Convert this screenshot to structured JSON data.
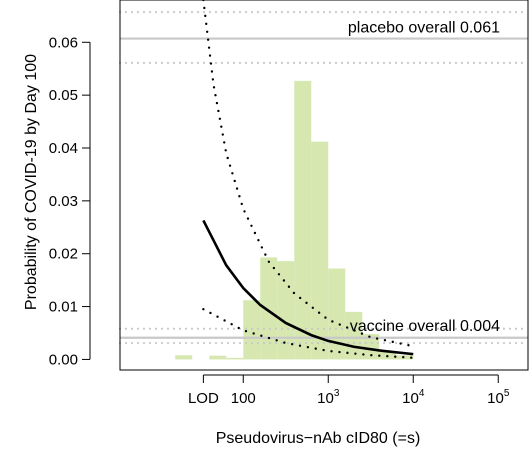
{
  "chart_data": {
    "type": "line",
    "title": "",
    "xlabel": "Pseudovirus−nAb cID80 (=s)",
    "ylabel": "Probability of COVID-19 by Day 100",
    "xscale": "log10",
    "xlim_log10": [
      0.55,
      5.35
    ],
    "ylim": [
      -0.002,
      0.068
    ],
    "grid": false,
    "x_tick_labels": [
      {
        "value_log10": 1.531,
        "base": "LOD",
        "exp": ""
      },
      {
        "value_log10": 2.0,
        "base": "100",
        "exp": ""
      },
      {
        "value_log10": 3.0,
        "base": "10",
        "exp": "3"
      },
      {
        "value_log10": 4.0,
        "base": "10",
        "exp": "4"
      },
      {
        "value_log10": 5.0,
        "base": "10",
        "exp": "5"
      }
    ],
    "y_ticks": [
      0.0,
      0.01,
      0.02,
      0.03,
      0.04,
      0.05,
      0.06
    ],
    "y_tick_labels": [
      "0.00",
      "0.01",
      "0.02",
      "0.03",
      "0.04",
      "0.05",
      "0.06"
    ],
    "reference_lines": [
      {
        "label": "placebo overall 0.061",
        "value": 0.0607,
        "lower": 0.0561,
        "upper": 0.0657,
        "color": "#c8c8c8"
      },
      {
        "label": "vaccine overall 0.004",
        "value": 0.0041,
        "lower": 0.0031,
        "upper": 0.0058,
        "color": "#c8c8c8"
      }
    ],
    "curve": {
      "x_log10": [
        1.531,
        1.8,
        2.0,
        2.2,
        2.5,
        2.8,
        3.0,
        3.3,
        3.6,
        4.0
      ],
      "y": [
        0.0263,
        0.0178,
        0.0135,
        0.0103,
        0.0069,
        0.0046,
        0.0035,
        0.0024,
        0.0017,
        0.001
      ],
      "lower_x_log10": [
        1.531,
        2.0,
        2.5,
        3.0,
        3.5,
        4.0
      ],
      "lower_y": [
        0.0095,
        0.0055,
        0.0031,
        0.0016,
        0.0008,
        0.0003
      ],
      "upper_x_log10": [
        1.531,
        1.65,
        1.8,
        2.0,
        2.3,
        2.6,
        3.0,
        3.5,
        4.0
      ],
      "upper_y": [
        0.068,
        0.052,
        0.039,
        0.0285,
        0.0185,
        0.0125,
        0.0075,
        0.0042,
        0.0025
      ],
      "color": "#000000"
    },
    "histogram": {
      "color": "#d6e8b0",
      "bin_width_log10": 0.2,
      "bin_starts_log10": [
        1.2,
        1.4,
        1.6,
        1.8,
        2.0,
        2.2,
        2.4,
        2.6,
        2.8,
        3.0,
        3.2,
        3.4,
        3.6,
        3.8,
        4.0
      ],
      "heights": [
        0.0008,
        0.0,
        0.0007,
        0.0003,
        0.0112,
        0.0193,
        0.0186,
        0.0527,
        0.0412,
        0.0172,
        0.009,
        0.0048,
        0.0015,
        0.0008,
        0.0
      ]
    }
  }
}
